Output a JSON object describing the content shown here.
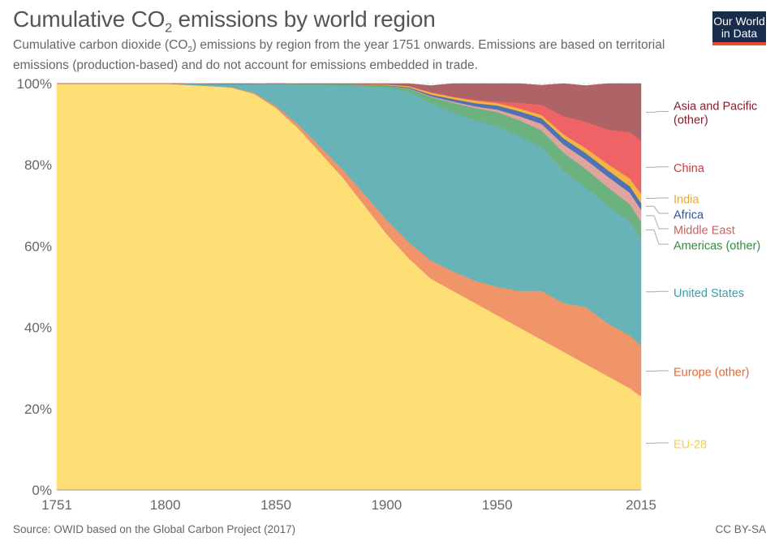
{
  "header": {
    "title_main": "Cumulative CO",
    "title_sub": "2",
    "title_rest": " emissions by world region",
    "subtitle_a": "Cumulative carbon dioxide (CO",
    "subtitle_sub": "2",
    "subtitle_b": ") emissions by region from the year 1751 onwards. Emissions are based on territorial emissions (production-based) and do not account for emissions embedded in trade.",
    "logo_line1": "Our World",
    "logo_line2": "in Data"
  },
  "footer": {
    "source": "Source: OWID based on the Global Carbon Project (2017)",
    "license": "CC BY-SA"
  },
  "chart_data": {
    "type": "area",
    "stacked": true,
    "normalized": true,
    "x": [
      1751,
      1800,
      1820,
      1830,
      1840,
      1850,
      1860,
      1870,
      1880,
      1890,
      1900,
      1910,
      1920,
      1930,
      1940,
      1950,
      1960,
      1970,
      1980,
      1990,
      2000,
      2010,
      2015
    ],
    "series": [
      {
        "name": "EU-28",
        "color": "#fedf76",
        "values": [
          100,
          100,
          99.4,
          99,
          97.5,
          94,
          89,
          83,
          77,
          70,
          63,
          57,
          52,
          49,
          46,
          43,
          40,
          37,
          34,
          31,
          28,
          25,
          23
        ]
      },
      {
        "name": "Europe (other)",
        "color": "#f0956a",
        "values": [
          0,
          0,
          0,
          0.1,
          0.3,
          0.5,
          1,
          1.5,
          2,
          2.8,
          3.5,
          4,
          4.5,
          4.8,
          5.5,
          7,
          9,
          12,
          12,
          14,
          13,
          13,
          12.5
        ]
      },
      {
        "name": "United States",
        "color": "#68b3b7",
        "values": [
          0,
          0,
          0.5,
          0.8,
          2,
          5.4,
          9.7,
          15.2,
          20.6,
          26.5,
          32.5,
          37,
          38.7,
          39,
          39.5,
          39.5,
          38,
          35.5,
          32.5,
          29.5,
          29,
          28,
          26.5
        ]
      },
      {
        "name": "Americas (other)",
        "color": "#6cb27e",
        "values": [
          0,
          0,
          0,
          0,
          0.1,
          0.1,
          0.2,
          0.2,
          0.3,
          0.4,
          0.5,
          0.8,
          1.5,
          2.5,
          3,
          3.5,
          4,
          4,
          4.5,
          4.5,
          4.5,
          4.3,
          4
        ]
      },
      {
        "name": "Middle East",
        "color": "#e0a3a0",
        "values": [
          0,
          0,
          0,
          0,
          0,
          0,
          0,
          0,
          0,
          0,
          0,
          0.1,
          0.2,
          0.3,
          0.4,
          0.6,
          1,
          1.6,
          2,
          2.3,
          2.6,
          2.8,
          3
        ]
      },
      {
        "name": "Africa",
        "color": "#4e72b4",
        "values": [
          0,
          0,
          0,
          0,
          0,
          0,
          0,
          0,
          0,
          0,
          0.1,
          0.2,
          0.4,
          0.6,
          0.8,
          1,
          1.2,
          1.4,
          1.5,
          1.6,
          1.6,
          1.6,
          1.6
        ]
      },
      {
        "name": "India",
        "color": "#f5b43f",
        "values": [
          0,
          0,
          0,
          0,
          0,
          0,
          0,
          0,
          0,
          0.1,
          0.2,
          0.3,
          0.5,
          0.5,
          0.6,
          0.6,
          0.7,
          0.8,
          1,
          1.2,
          1.5,
          1.9,
          2.3
        ]
      },
      {
        "name": "China",
        "color": "#ee6466",
        "values": [
          0,
          0,
          0,
          0,
          0,
          0,
          0,
          0,
          0,
          0,
          0,
          0,
          0.1,
          0.1,
          0.2,
          0.4,
          1.4,
          2.5,
          4.5,
          6.5,
          8.5,
          11.5,
          13
        ]
      },
      {
        "name": "Asia and Pacific (other)",
        "color": "#ae6367",
        "values": [
          0,
          0,
          0.1,
          0.1,
          0.1,
          0,
          0.1,
          0.1,
          0.1,
          0.2,
          0.2,
          0.6,
          1.6,
          3.2,
          4,
          4.4,
          4.7,
          4.8,
          8,
          8.9,
          11.3,
          11.9,
          14.1
        ]
      }
    ],
    "xlabel": "",
    "ylabel": "",
    "xlim": [
      1751,
      2015
    ],
    "ylim": [
      0,
      100
    ],
    "x_ticks": [
      1751,
      1800,
      1850,
      1900,
      1950,
      2015
    ],
    "y_ticks": [
      0,
      20,
      40,
      60,
      80,
      100
    ],
    "y_tick_suffix": "%",
    "legend": "right-inline-labels",
    "label_colors": {
      "Asia and Pacific (other)": "#8a1a2e",
      "China": "#d43a3c",
      "India": "#f0a91e",
      "Africa": "#3451a0",
      "Middle East": "#d06060",
      "Americas (other)": "#2e8b3a",
      "United States": "#3aa0aa",
      "Europe (other)": "#e06a35",
      "EU-28": "#f6cd45"
    },
    "series_label_lines": {
      "Asia and Pacific (other)": [
        "Asia and Pacific",
        "(other)"
      ]
    }
  }
}
